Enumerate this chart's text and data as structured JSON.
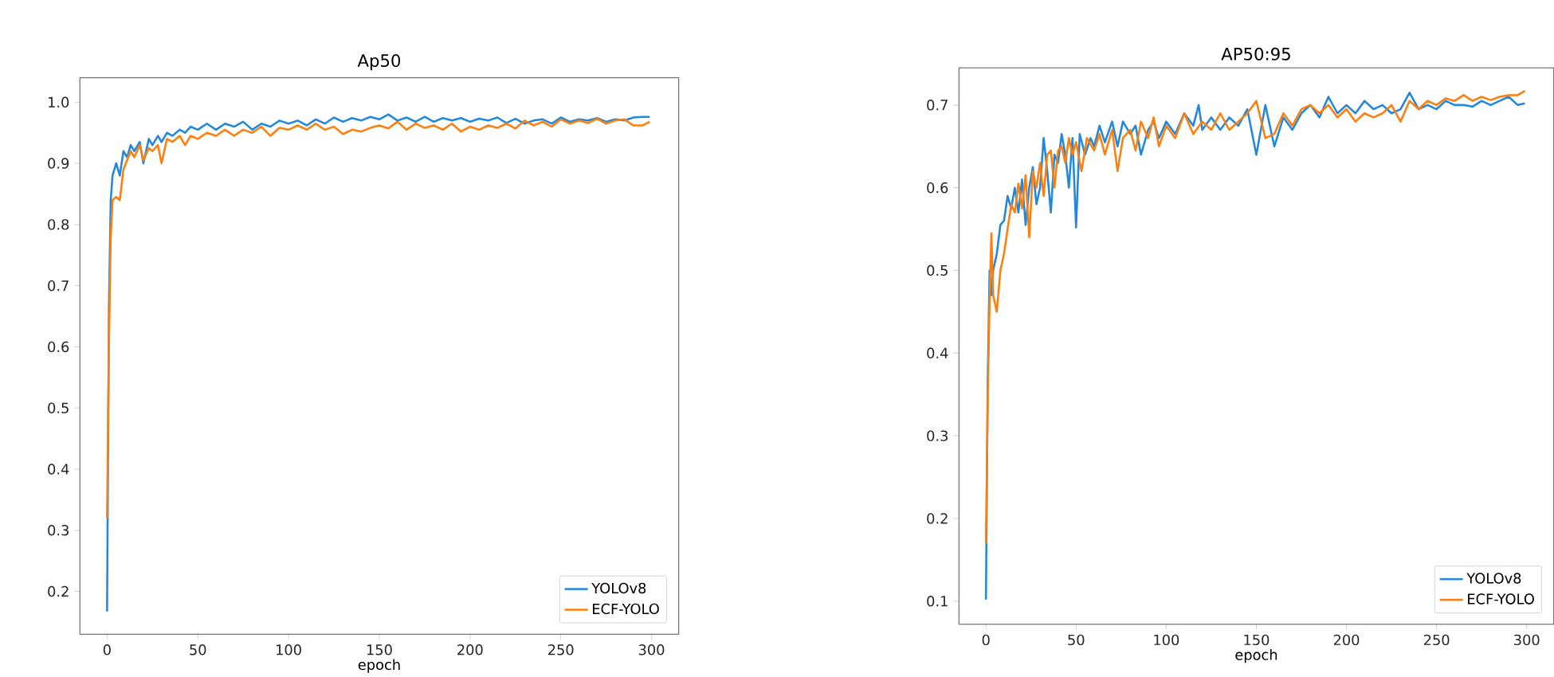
{
  "chart_data": [
    {
      "type": "line",
      "title": "Ap50",
      "xlabel": "epoch",
      "xlim": [
        -15,
        315
      ],
      "xticks": [
        0,
        50,
        100,
        150,
        200,
        250,
        300
      ],
      "ylim": [
        0.13,
        1.04
      ],
      "yticks": [
        {
          "value": 0.2,
          "label": "0.2"
        },
        {
          "value": 0.3,
          "label": "0.3"
        },
        {
          "value": 0.4,
          "label": "0.4"
        },
        {
          "value": 0.5,
          "label": "0.5"
        },
        {
          "value": 0.6,
          "label": "0.6"
        },
        {
          "value": 0.7,
          "label": "0.7"
        },
        {
          "value": 0.8,
          "label": "0.8"
        },
        {
          "value": 0.9,
          "label": "0.9"
        },
        {
          "value": 1.0,
          "label": "1.0"
        }
      ],
      "legend": "bottom right",
      "grid": false,
      "series": [
        {
          "name": "YOLOv8",
          "color": "#2288dd",
          "x": [
            0,
            1,
            2,
            3,
            5,
            7,
            9,
            11,
            13,
            15,
            18,
            20,
            23,
            25,
            28,
            30,
            33,
            36,
            40,
            43,
            46,
            50,
            55,
            60,
            65,
            70,
            75,
            80,
            85,
            90,
            95,
            100,
            105,
            110,
            115,
            120,
            125,
            130,
            135,
            140,
            145,
            150,
            155,
            160,
            165,
            170,
            175,
            180,
            185,
            190,
            195,
            200,
            205,
            210,
            215,
            220,
            225,
            230,
            235,
            240,
            245,
            250,
            255,
            260,
            265,
            270,
            275,
            280,
            285,
            290,
            295,
            299
          ],
          "values": [
            0.167,
            0.66,
            0.84,
            0.88,
            0.9,
            0.88,
            0.92,
            0.91,
            0.93,
            0.92,
            0.935,
            0.9,
            0.94,
            0.93,
            0.945,
            0.935,
            0.95,
            0.945,
            0.955,
            0.95,
            0.96,
            0.955,
            0.965,
            0.955,
            0.965,
            0.96,
            0.968,
            0.955,
            0.965,
            0.96,
            0.97,
            0.965,
            0.97,
            0.962,
            0.972,
            0.965,
            0.975,
            0.968,
            0.974,
            0.97,
            0.976,
            0.972,
            0.98,
            0.97,
            0.975,
            0.968,
            0.976,
            0.968,
            0.974,
            0.97,
            0.974,
            0.968,
            0.973,
            0.97,
            0.975,
            0.966,
            0.973,
            0.965,
            0.97,
            0.972,
            0.965,
            0.975,
            0.968,
            0.972,
            0.97,
            0.974,
            0.968,
            0.972,
            0.97,
            0.975,
            0.976,
            0.976
          ]
        },
        {
          "name": "ECF-YOLO",
          "color": "#ff7f0e",
          "x": [
            0,
            1,
            2,
            3,
            5,
            7,
            9,
            11,
            13,
            15,
            18,
            20,
            23,
            25,
            28,
            30,
            33,
            36,
            40,
            43,
            46,
            50,
            55,
            60,
            65,
            70,
            75,
            80,
            85,
            90,
            95,
            100,
            105,
            110,
            115,
            120,
            125,
            130,
            135,
            140,
            145,
            150,
            155,
            160,
            165,
            170,
            175,
            180,
            185,
            190,
            195,
            200,
            205,
            210,
            215,
            220,
            225,
            230,
            235,
            240,
            245,
            250,
            255,
            260,
            265,
            270,
            275,
            280,
            285,
            290,
            295,
            299
          ],
          "values": [
            0.32,
            0.6,
            0.78,
            0.84,
            0.845,
            0.84,
            0.89,
            0.905,
            0.92,
            0.91,
            0.93,
            0.905,
            0.925,
            0.92,
            0.93,
            0.9,
            0.94,
            0.935,
            0.945,
            0.93,
            0.945,
            0.94,
            0.95,
            0.945,
            0.955,
            0.945,
            0.955,
            0.95,
            0.96,
            0.945,
            0.958,
            0.955,
            0.962,
            0.955,
            0.965,
            0.955,
            0.96,
            0.948,
            0.955,
            0.952,
            0.958,
            0.962,
            0.957,
            0.968,
            0.955,
            0.965,
            0.958,
            0.962,
            0.955,
            0.965,
            0.952,
            0.96,
            0.955,
            0.962,
            0.958,
            0.965,
            0.957,
            0.97,
            0.962,
            0.968,
            0.96,
            0.972,
            0.965,
            0.97,
            0.966,
            0.973,
            0.965,
            0.97,
            0.972,
            0.962,
            0.962,
            0.968
          ]
        }
      ]
    },
    {
      "type": "line",
      "title": "AP50:95",
      "xlabel": "epoch",
      "xlim": [
        -15,
        315
      ],
      "xticks": [
        0,
        50,
        100,
        150,
        200,
        250,
        300
      ],
      "ylim": [
        0.072,
        0.745
      ],
      "yticks": [
        0.1,
        0.2,
        0.3,
        0.4,
        0.5,
        0.6,
        0.7
      ],
      "legend": "bottom right",
      "grid": false,
      "series": [
        {
          "name": "YOLOv8",
          "color": "#2288dd",
          "x": [
            0,
            1,
            2,
            3,
            4,
            6,
            8,
            10,
            12,
            14,
            16,
            18,
            20,
            22,
            24,
            26,
            28,
            30,
            32,
            34,
            36,
            38,
            40,
            42,
            44,
            46,
            48,
            50,
            52,
            55,
            58,
            60,
            63,
            66,
            70,
            73,
            76,
            80,
            83,
            86,
            90,
            93,
            96,
            100,
            105,
            110,
            115,
            118,
            120,
            125,
            130,
            135,
            140,
            145,
            150,
            155,
            160,
            165,
            170,
            175,
            180,
            185,
            190,
            195,
            200,
            205,
            210,
            215,
            220,
            225,
            230,
            235,
            240,
            245,
            250,
            255,
            260,
            265,
            270,
            275,
            280,
            285,
            290,
            295,
            299
          ],
          "values": [
            0.102,
            0.37,
            0.5,
            0.47,
            0.5,
            0.52,
            0.555,
            0.56,
            0.59,
            0.575,
            0.6,
            0.57,
            0.61,
            0.555,
            0.6,
            0.625,
            0.58,
            0.6,
            0.66,
            0.62,
            0.57,
            0.64,
            0.63,
            0.665,
            0.64,
            0.6,
            0.66,
            0.552,
            0.665,
            0.64,
            0.66,
            0.65,
            0.675,
            0.655,
            0.68,
            0.65,
            0.68,
            0.665,
            0.675,
            0.64,
            0.67,
            0.68,
            0.66,
            0.68,
            0.665,
            0.69,
            0.675,
            0.7,
            0.67,
            0.685,
            0.67,
            0.685,
            0.675,
            0.695,
            0.64,
            0.7,
            0.65,
            0.685,
            0.67,
            0.69,
            0.7,
            0.685,
            0.71,
            0.69,
            0.7,
            0.69,
            0.705,
            0.695,
            0.7,
            0.69,
            0.695,
            0.715,
            0.695,
            0.7,
            0.695,
            0.705,
            0.7,
            0.7,
            0.698,
            0.705,
            0.7,
            0.705,
            0.71,
            0.7,
            0.702
          ]
        },
        {
          "name": "ECF-YOLO",
          "color": "#ff7f0e",
          "x": [
            0,
            1,
            2,
            3,
            4,
            6,
            8,
            10,
            12,
            14,
            16,
            18,
            20,
            22,
            24,
            26,
            28,
            30,
            32,
            34,
            36,
            38,
            40,
            42,
            44,
            46,
            48,
            50,
            53,
            56,
            60,
            63,
            66,
            70,
            73,
            76,
            80,
            83,
            86,
            90,
            93,
            96,
            100,
            105,
            110,
            115,
            120,
            125,
            130,
            135,
            140,
            145,
            150,
            155,
            160,
            165,
            170,
            175,
            180,
            185,
            190,
            195,
            200,
            205,
            210,
            215,
            220,
            225,
            230,
            235,
            240,
            245,
            250,
            255,
            260,
            265,
            270,
            275,
            280,
            285,
            290,
            295,
            299
          ],
          "values": [
            0.17,
            0.35,
            0.46,
            0.545,
            0.47,
            0.45,
            0.5,
            0.52,
            0.55,
            0.58,
            0.57,
            0.605,
            0.575,
            0.615,
            0.54,
            0.62,
            0.6,
            0.63,
            0.59,
            0.64,
            0.645,
            0.6,
            0.645,
            0.65,
            0.63,
            0.66,
            0.64,
            0.655,
            0.62,
            0.66,
            0.645,
            0.665,
            0.64,
            0.67,
            0.62,
            0.66,
            0.67,
            0.645,
            0.68,
            0.66,
            0.685,
            0.65,
            0.675,
            0.66,
            0.69,
            0.665,
            0.68,
            0.67,
            0.69,
            0.67,
            0.68,
            0.69,
            0.705,
            0.66,
            0.665,
            0.69,
            0.675,
            0.695,
            0.7,
            0.69,
            0.7,
            0.685,
            0.695,
            0.68,
            0.69,
            0.685,
            0.69,
            0.7,
            0.68,
            0.705,
            0.695,
            0.705,
            0.7,
            0.708,
            0.705,
            0.712,
            0.705,
            0.71,
            0.706,
            0.71,
            0.712,
            0.712,
            0.717
          ]
        }
      ]
    }
  ]
}
